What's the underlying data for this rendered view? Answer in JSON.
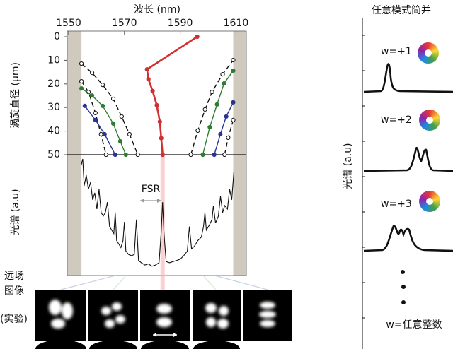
{
  "chart_data": [
    {
      "type": "line",
      "xlabel": "波长 (nm)",
      "ylabel": "涡旋直径 (μm)",
      "xlim": [
        1549.5,
        1613.7
      ],
      "xticks": [
        1550,
        1570,
        1590,
        1610
      ],
      "ylim": [
        0,
        50
      ],
      "yticks": [
        0,
        10,
        20,
        30,
        40,
        50
      ],
      "y_inverted": true,
      "shaded_x": [
        [
          1549.5,
          1554.6
        ],
        [
          1609.0,
          1613.7
        ]
      ],
      "series": [
        {
          "color": "#d32f2f",
          "dash": false,
          "marker": "filled",
          "x": [
            1596.1,
            1578.1,
            1578.6,
            1580.1,
            1581.6,
            1582.7,
            1583.2,
            1583.7
          ],
          "values": [
            0,
            13.8,
            18,
            23,
            29,
            36,
            43,
            50
          ]
        },
        {
          "color": "#111111",
          "dash": true,
          "marker": "open",
          "x": [
            1554.6,
            1558.4,
            1562.2,
            1566.0,
            1569.0,
            1571.8,
            1574.8
          ],
          "values": [
            11.4,
            15.3,
            20.4,
            26.3,
            33.8,
            41.3,
            50
          ]
        },
        {
          "color": "#111111",
          "dash": true,
          "marker": "open",
          "x": [
            1554.6,
            1557.1,
            1559.6,
            1561.6,
            1563.4
          ],
          "values": [
            18.9,
            23.4,
            32.3,
            41.3,
            50
          ]
        },
        {
          "color": "#2e7d32",
          "dash": false,
          "marker": "filled",
          "x": [
            1554.6,
            1558.4,
            1562.2,
            1566.0,
            1568.5,
            1570.5
          ],
          "values": [
            21.9,
            24.9,
            29.3,
            36.8,
            44.3,
            50
          ]
        },
        {
          "color": "#283593",
          "dash": false,
          "marker": "filled",
          "x": [
            1555.8,
            1559.6,
            1562.9,
            1566.7
          ],
          "values": [
            29.3,
            35.3,
            41.3,
            50
          ]
        },
        {
          "color": "#111111",
          "dash": true,
          "marker": "open",
          "x": [
            1593.8,
            1596.3,
            1598.9,
            1601.4,
            1605.2,
            1609.0
          ],
          "values": [
            50,
            39.8,
            30.8,
            23.4,
            15.9,
            9.9
          ]
        },
        {
          "color": "#2e7d32",
          "dash": false,
          "marker": "filled",
          "x": [
            1598.1,
            1600.6,
            1603.2,
            1605.7,
            1609.0
          ],
          "values": [
            50,
            38.3,
            28.7,
            19.8,
            14.4
          ]
        },
        {
          "color": "#283593",
          "dash": false,
          "marker": "filled",
          "x": [
            1602.2,
            1604.4,
            1606.5,
            1609.0
          ],
          "values": [
            50,
            41.3,
            33.8,
            27.8
          ]
        },
        {
          "color": "#111111",
          "dash": true,
          "marker": "open",
          "x": [
            1605.9,
            1607.2,
            1609.0
          ],
          "values": [
            50,
            42.8,
            35.3
          ]
        }
      ]
    },
    {
      "type": "line",
      "ylabel": "光谱 (a.u)",
      "annotation": "FSR",
      "color": "#111111",
      "xlim": [
        1549.5,
        1613.7
      ],
      "ylim": [
        0,
        1
      ],
      "x": [
        1554.56,
        1555.06,
        1555.57,
        1556.33,
        1557.09,
        1557.85,
        1558.61,
        1559.37,
        1560.13,
        1560.89,
        1561.65,
        1562.41,
        1563.16,
        1563.92,
        1564.68,
        1565.44,
        1566.2,
        1566.71,
        1567.22,
        1567.97,
        1568.73,
        1569.49,
        1570.0,
        1570.51,
        1571.52,
        1572.53,
        1573.54,
        1574.3,
        1575.06,
        1576.08,
        1577.34,
        1578.61,
        1579.87,
        1581.14,
        1582.41,
        1583.16,
        1583.67,
        1584.18,
        1584.94,
        1586.2,
        1587.47,
        1588.73,
        1590.0,
        1591.27,
        1592.53,
        1593.29,
        1594.05,
        1595.06,
        1596.33,
        1597.59,
        1598.35,
        1598.86,
        1599.37,
        1600.38,
        1601.39,
        1601.9,
        1602.66,
        1603.67,
        1604.43,
        1605.19,
        1605.95,
        1606.96,
        1607.72,
        1608.48,
        1609.24
      ],
      "values": [
        0.95,
        1.0,
        0.77,
        0.86,
        0.74,
        0.8,
        0.65,
        0.71,
        0.57,
        0.74,
        0.54,
        0.51,
        0.54,
        0.63,
        0.42,
        0.39,
        0.36,
        0.54,
        0.3,
        0.27,
        0.24,
        0.3,
        0.46,
        0.21,
        0.18,
        0.17,
        0.18,
        0.48,
        0.13,
        0.11,
        0.09,
        0.1,
        0.08,
        0.09,
        0.11,
        0.36,
        0.63,
        0.36,
        0.12,
        0.11,
        0.12,
        0.13,
        0.14,
        0.17,
        0.21,
        0.42,
        0.23,
        0.25,
        0.3,
        0.33,
        0.42,
        0.54,
        0.39,
        0.43,
        0.48,
        0.6,
        0.45,
        0.51,
        0.68,
        0.54,
        0.6,
        0.57,
        0.74,
        0.65,
        0.89
      ]
    }
  ],
  "far_field": {
    "label": [
      "远场",
      "图像",
      "(实验)"
    ]
  },
  "mode_panel": {
    "title": "任意模式简并",
    "ylabel": "光谱 (a.u)",
    "labels": [
      "w=+1",
      "w=+2",
      "w=+3",
      "w=任意整数"
    ]
  }
}
